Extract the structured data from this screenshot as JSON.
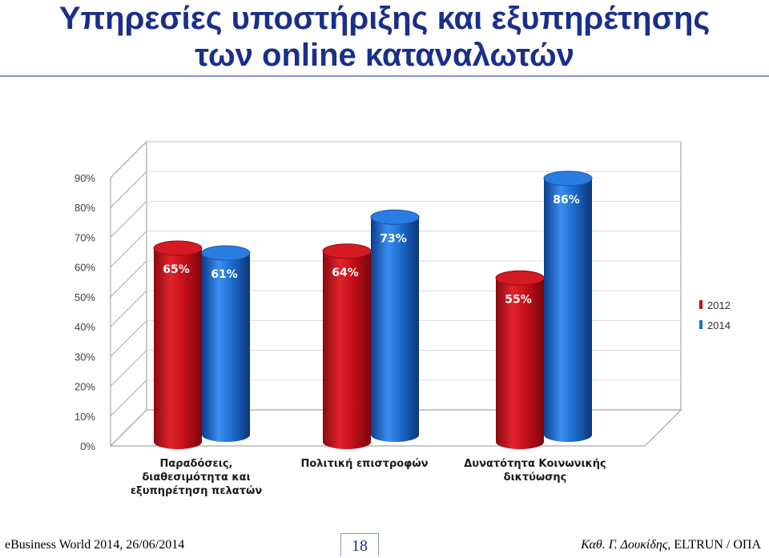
{
  "slide": {
    "title_line1": "Υπηρεσίες υποστήριξης και εξυπηρέτησης",
    "title_line2": "των online καταναλωτών",
    "footer_left": "eBusiness World 2014, 26/06/2014",
    "page_number": "18",
    "footer_right_italic": "Καθ. Γ. Δουκίδης,",
    "footer_right_plain": "ELTRUN / ΟΠΑ"
  },
  "colors": {
    "title": "#1a2f8a",
    "series_2012": "#c8101a",
    "series_2014": "#1e6fd0"
  },
  "chart_data": {
    "type": "bar",
    "title": "",
    "xlabel": "",
    "ylabel": "",
    "ylim": [
      0,
      90
    ],
    "yticks": [
      "0%",
      "10%",
      "20%",
      "30%",
      "40%",
      "50%",
      "60%",
      "70%",
      "80%",
      "90%"
    ],
    "categories": [
      [
        "Παραδόσεις,",
        "διαθεσιμότητα και",
        "εξυπηρέτηση πελατών"
      ],
      [
        "Πολιτική επιστροφών"
      ],
      [
        "Δυνατότητα Κοινωνικής",
        "δικτύωσης"
      ]
    ],
    "series": [
      {
        "name": "2012",
        "values": [
          65,
          64,
          55
        ],
        "labels": [
          "65%",
          "64%",
          "55%"
        ],
        "color": "#c8101a"
      },
      {
        "name": "2014",
        "values": [
          61,
          73,
          86
        ],
        "labels": [
          "61%",
          "73%",
          "86%"
        ],
        "color": "#1e6fd0"
      }
    ],
    "legend_position": "right",
    "grid": true
  }
}
